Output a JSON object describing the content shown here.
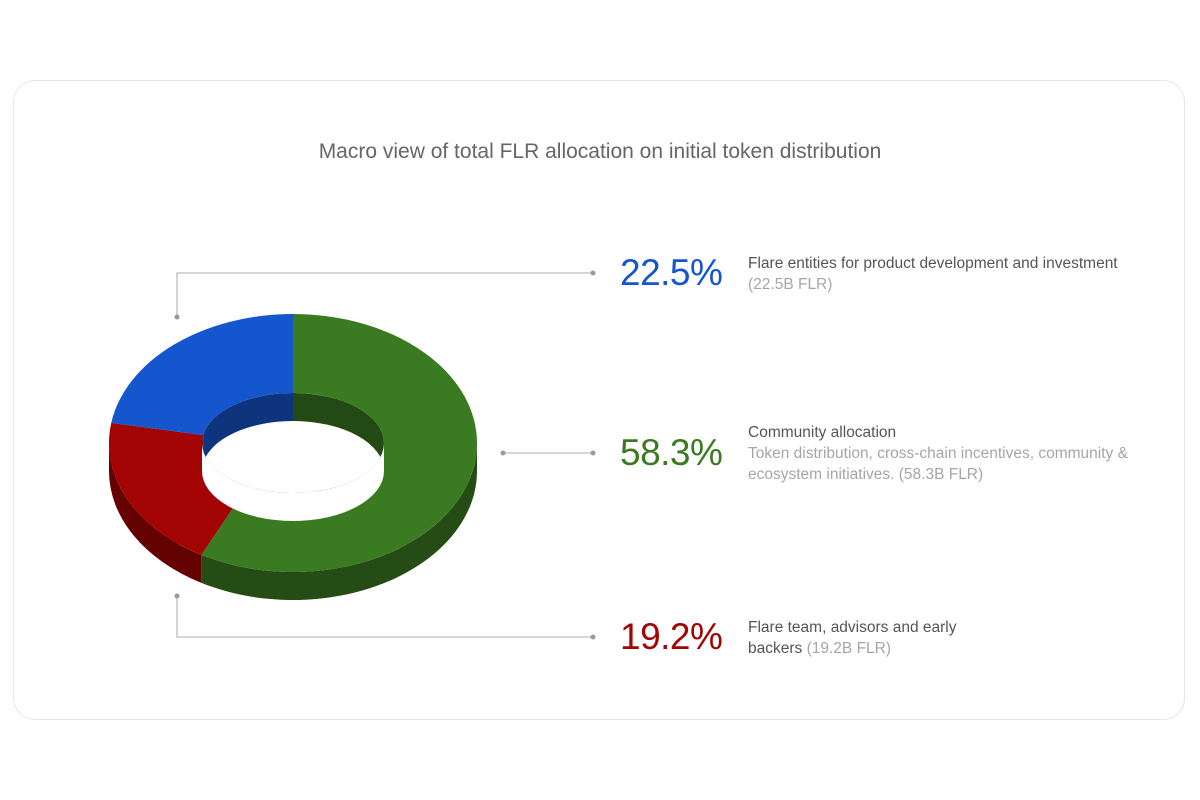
{
  "chart_data": {
    "type": "pie",
    "title": "Macro view of total FLR allocation on initial token distribution",
    "slices": [
      {
        "key": "entities",
        "value": 22.5,
        "value_label": "22.5%",
        "color": "#1556cf",
        "label_primary": "Flare entities for product development and investment",
        "label_secondary": "(22.5B FLR)"
      },
      {
        "key": "community",
        "value": 58.3,
        "value_label": "58.3%",
        "color": "#3a7a21",
        "label_primary": "Community allocation",
        "label_secondary": "Token distribution, cross-chain incentives, community & ecosystem initiatives. (58.3B FLR)"
      },
      {
        "key": "team",
        "value": 19.2,
        "value_label": "19.2%",
        "color": "#a20404",
        "label_primary": "Flare team, advisors and early backers",
        "label_secondary": "(19.2B FLR)"
      }
    ],
    "style": "3d-donut",
    "legend": "right"
  }
}
